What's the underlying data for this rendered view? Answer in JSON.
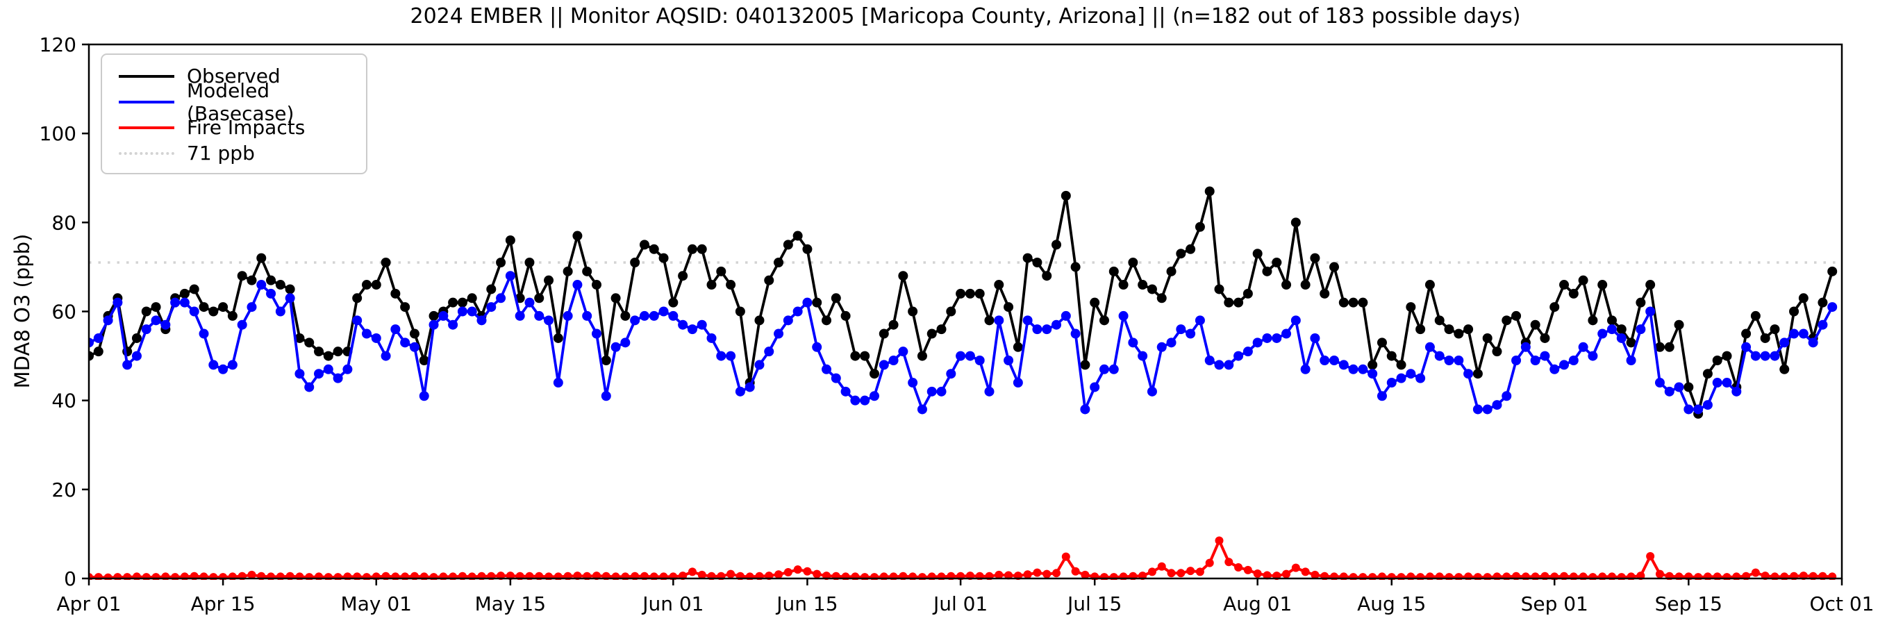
{
  "figure": {
    "title": "2024 EMBER || Monitor AQSID: 040132005 [Maricopa County, Arizona] || (n=182 out of 183 possible days)",
    "y_axis_label": "MDA8 O3 (ppb)"
  },
  "legend": {
    "items": [
      {
        "label": "Observed",
        "color": "#000000",
        "style": "solid"
      },
      {
        "label": "Modeled (Basecase)",
        "color": "#0000ff",
        "style": "solid"
      },
      {
        "label": "Fire Impacts",
        "color": "#ff0000",
        "style": "solid"
      },
      {
        "label": "71 ppb",
        "color": "#d3d3d3",
        "style": "dotted"
      }
    ]
  },
  "chart_data": {
    "type": "line",
    "title": "2024 EMBER || Monitor AQSID: 040132005 [Maricopa County, Arizona] || (n=182 out of 183 possible days)",
    "xlabel": "",
    "ylabel": "MDA8 O3 (ppb)",
    "ylim": [
      0,
      120
    ],
    "y_ticks": [
      0,
      20,
      40,
      60,
      80,
      100,
      120
    ],
    "x_span_days": 183,
    "x_start": "Apr 01",
    "x_end": "Oct 01",
    "x_ticks": [
      {
        "day": 0,
        "label": "Apr 01"
      },
      {
        "day": 14,
        "label": "Apr 15"
      },
      {
        "day": 30,
        "label": "May 01"
      },
      {
        "day": 44,
        "label": "May 15"
      },
      {
        "day": 61,
        "label": "Jun 01"
      },
      {
        "day": 75,
        "label": "Jun 15"
      },
      {
        "day": 91,
        "label": "Jul 01"
      },
      {
        "day": 105,
        "label": "Jul 15"
      },
      {
        "day": 122,
        "label": "Aug 01"
      },
      {
        "day": 136,
        "label": "Aug 15"
      },
      {
        "day": 153,
        "label": "Sep 01"
      },
      {
        "day": 167,
        "label": "Sep 15"
      },
      {
        "day": 183,
        "label": "Oct 01"
      }
    ],
    "threshold": {
      "value": 71,
      "label": "71 ppb",
      "color": "#d3d3d3"
    },
    "grid": false,
    "legend_position": "upper left",
    "series": [
      {
        "name": "Observed",
        "color": "#000000",
        "marker": "o",
        "values": [
          50,
          51,
          59,
          63,
          51,
          54,
          60,
          61,
          56,
          63,
          64,
          65,
          61,
          60,
          61,
          59,
          68,
          67,
          72,
          67,
          66,
          65,
          54,
          53,
          51,
          50,
          51,
          51,
          63,
          66,
          66,
          71,
          64,
          61,
          55,
          49,
          59,
          60,
          62,
          62,
          63,
          59,
          65,
          71,
          76,
          63,
          71,
          63,
          67,
          54,
          69,
          77,
          69,
          66,
          49,
          63,
          59,
          71,
          75,
          74,
          72,
          62,
          68,
          74,
          74,
          66,
          69,
          66,
          60,
          44,
          58,
          67,
          71,
          75,
          77,
          74,
          62,
          58,
          63,
          59,
          50,
          50,
          46,
          55,
          57,
          68,
          60,
          50,
          55,
          56,
          60,
          64,
          64,
          64,
          58,
          66,
          61,
          52,
          72,
          71,
          68,
          75,
          86,
          70,
          48,
          62,
          58,
          69,
          66,
          71,
          66,
          65,
          63,
          69,
          73,
          74,
          79,
          87,
          65,
          62,
          62,
          64,
          73,
          69,
          71,
          66,
          80,
          66,
          72,
          64,
          70,
          62,
          62,
          62,
          48,
          53,
          50,
          48,
          61,
          56,
          66,
          58,
          56,
          55,
          56,
          46,
          54,
          51,
          58,
          59,
          53,
          57,
          54,
          61,
          66,
          64,
          67,
          58,
          66,
          58,
          56,
          53,
          62,
          66,
          52,
          52,
          57,
          43,
          37,
          46,
          49,
          50,
          43,
          55,
          59,
          54,
          56,
          47,
          60,
          63,
          54,
          62,
          69
        ]
      },
      {
        "name": "Modeled (Basecase)",
        "color": "#0000ff",
        "marker": "o",
        "values": [
          53,
          54,
          58,
          62,
          48,
          50,
          56,
          58,
          57,
          62,
          62,
          60,
          55,
          48,
          47,
          48,
          57,
          61,
          66,
          64,
          60,
          63,
          46,
          43,
          46,
          47,
          45,
          47,
          58,
          55,
          54,
          50,
          56,
          53,
          52,
          41,
          57,
          59,
          57,
          60,
          60,
          58,
          61,
          63,
          68,
          59,
          62,
          59,
          58,
          44,
          59,
          66,
          59,
          55,
          41,
          52,
          53,
          58,
          59,
          59,
          60,
          59,
          57,
          56,
          57,
          54,
          50,
          50,
          42,
          43,
          48,
          51,
          55,
          58,
          60,
          62,
          52,
          47,
          45,
          42,
          40,
          40,
          41,
          48,
          49,
          51,
          44,
          38,
          42,
          42,
          46,
          50,
          50,
          49,
          42,
          58,
          49,
          44,
          58,
          56,
          56,
          57,
          59,
          55,
          38,
          43,
          47,
          47,
          59,
          53,
          50,
          42,
          52,
          53,
          56,
          55,
          58,
          49,
          48,
          48,
          50,
          51,
          53,
          54,
          54,
          55,
          58,
          47,
          54,
          49,
          49,
          48,
          47,
          47,
          46,
          41,
          44,
          45,
          46,
          45,
          52,
          50,
          49,
          49,
          46,
          38,
          38,
          39,
          41,
          49,
          52,
          49,
          50,
          47,
          48,
          49,
          52,
          50,
          55,
          56,
          54,
          49,
          56,
          60,
          44,
          42,
          43,
          38,
          38,
          39,
          44,
          44,
          42,
          52,
          50,
          50,
          50,
          53,
          55,
          55,
          53,
          57,
          61
        ]
      },
      {
        "name": "Fire Impacts",
        "color": "#ff0000",
        "marker": "o",
        "values": [
          0.3,
          0.3,
          0.2,
          0.3,
          0.3,
          0.4,
          0.3,
          0.3,
          0.4,
          0.3,
          0.4,
          0.5,
          0.4,
          0.3,
          0.3,
          0.4,
          0.5,
          0.8,
          0.5,
          0.4,
          0.4,
          0.5,
          0.4,
          0.3,
          0.4,
          0.3,
          0.3,
          0.4,
          0.4,
          0.3,
          0.4,
          0.5,
          0.4,
          0.4,
          0.5,
          0.4,
          0.3,
          0.4,
          0.4,
          0.5,
          0.4,
          0.5,
          0.5,
          0.6,
          0.6,
          0.5,
          0.5,
          0.5,
          0.4,
          0.4,
          0.5,
          0.6,
          0.5,
          0.6,
          0.5,
          0.4,
          0.4,
          0.5,
          0.5,
          0.4,
          0.4,
          0.4,
          0.6,
          1.5,
          0.8,
          0.5,
          0.5,
          1.0,
          0.5,
          0.4,
          0.5,
          0.6,
          0.9,
          1.4,
          2.0,
          1.6,
          1.0,
          0.6,
          0.5,
          0.4,
          0.4,
          0.3,
          0.3,
          0.4,
          0.4,
          0.5,
          0.4,
          0.3,
          0.4,
          0.4,
          0.5,
          0.5,
          0.6,
          0.5,
          0.5,
          0.8,
          0.7,
          0.6,
          0.9,
          1.3,
          1.0,
          1.2,
          4.9,
          1.6,
          0.8,
          0.4,
          0.3,
          0.3,
          0.4,
          0.5,
          0.6,
          1.5,
          2.7,
          1.2,
          1.2,
          1.7,
          1.5,
          3.5,
          8.5,
          3.7,
          2.5,
          1.9,
          1.1,
          0.7,
          0.6,
          1.0,
          2.4,
          1.5,
          0.8,
          0.5,
          0.4,
          0.4,
          0.3,
          0.3,
          0.3,
          0.4,
          0.3,
          0.3,
          0.4,
          0.3,
          0.4,
          0.4,
          0.3,
          0.3,
          0.4,
          0.3,
          0.3,
          0.4,
          0.4,
          0.5,
          0.4,
          0.4,
          0.5,
          0.4,
          0.5,
          0.4,
          0.4,
          0.3,
          0.4,
          0.4,
          0.3,
          0.4,
          0.6,
          5.0,
          1.0,
          0.5,
          0.4,
          0.4,
          0.3,
          0.4,
          0.4,
          0.3,
          0.4,
          0.5,
          1.3,
          0.6,
          0.4,
          0.4,
          0.5,
          0.6,
          0.5,
          0.5,
          0.4
        ]
      }
    ]
  }
}
